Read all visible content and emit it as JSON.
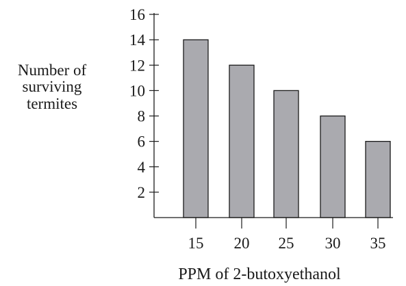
{
  "chart_data": {
    "type": "bar",
    "title": "",
    "xlabel": "PPM of 2-butoxyethanol",
    "ylabel_lines": [
      "Number of",
      "surviving",
      "termites"
    ],
    "categories": [
      "15",
      "20",
      "25",
      "30",
      "35"
    ],
    "values": [
      14,
      12,
      10,
      8,
      6
    ],
    "ylim": [
      0,
      16
    ],
    "yticks": [
      2,
      4,
      6,
      8,
      10,
      12,
      14,
      16
    ],
    "grid": false,
    "legend": "none",
    "bar_color": "#aaaaaf",
    "edge_color": "#1a1a1a"
  }
}
